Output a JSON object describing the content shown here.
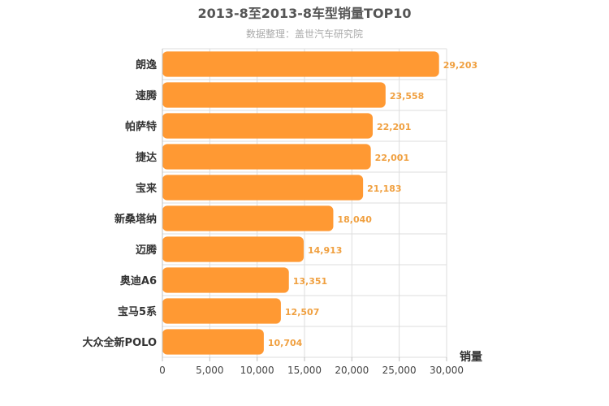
{
  "chart_data": {
    "type": "bar",
    "orientation": "horizontal",
    "title": "2013-8至2013-8车型销量TOP10",
    "subtitle": "数据整理：盖世汽车研究院",
    "xlabel": "销量",
    "categories": [
      "朗逸",
      "速腾",
      "帕萨特",
      "捷达",
      "宝来",
      "新桑塔纳",
      "迈腾",
      "奥迪A6",
      "宝马5系",
      "大众全新POLO"
    ],
    "values": [
      29203,
      23558,
      22201,
      22001,
      21183,
      18040,
      14913,
      13351,
      12507,
      10704
    ],
    "value_labels": [
      "29,203",
      "23,558",
      "22,201",
      "22,001",
      "21,183",
      "18,040",
      "14,913",
      "13,351",
      "12,507",
      "10,704"
    ],
    "xlim": [
      0,
      30000
    ],
    "ticks": [
      0,
      5000,
      10000,
      15000,
      20000,
      25000,
      30000
    ],
    "tick_labels": [
      "0",
      "5,000",
      "10,000",
      "15,000",
      "20,000",
      "25,000",
      "30,000"
    ],
    "grid": true,
    "bar_color": "#ff9933",
    "value_label_color": "#f0a040"
  }
}
